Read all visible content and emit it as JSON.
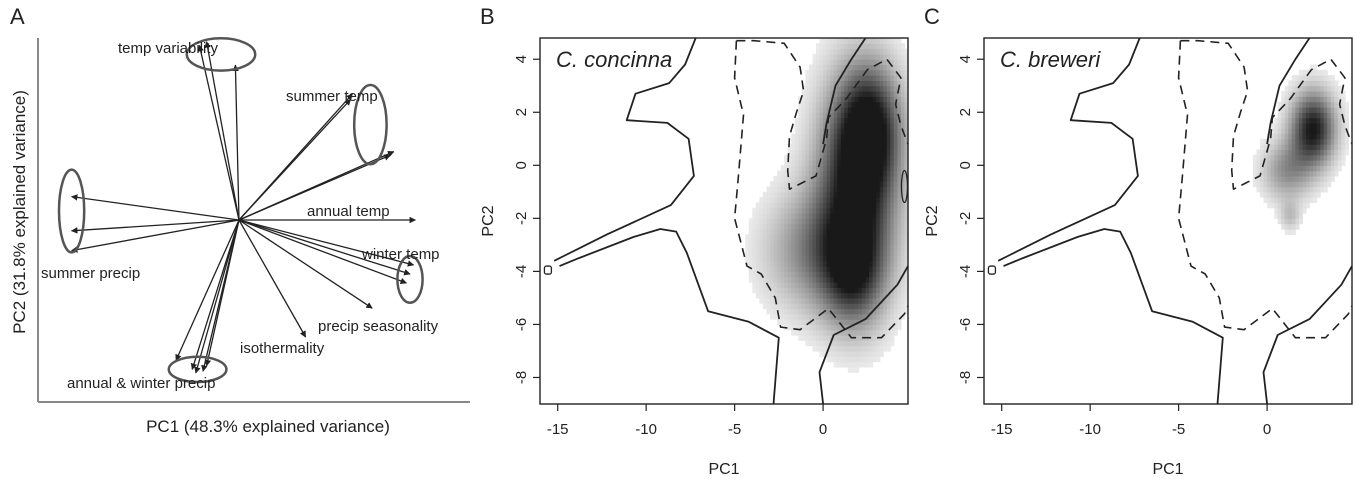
{
  "chart_data": [
    {
      "panel": "A",
      "type": "biplot",
      "xlabel": "PC1 (48.3% explained variance)",
      "ylabel": "PC2  (31.8% explained variance)",
      "xlim": [
        -1,
        1
      ],
      "ylim": [
        -1,
        1
      ],
      "origin": [
        0,
        0
      ],
      "vectors": [
        {
          "x": 0.98,
          "y": 0.0
        },
        {
          "x": 0.84,
          "y": 0.36
        },
        {
          "x": 0.86,
          "y": 0.38
        },
        {
          "x": 0.62,
          "y": 0.67
        },
        {
          "x": 0.63,
          "y": 0.7
        },
        {
          "x": -0.18,
          "y": 0.99
        },
        {
          "x": -0.22,
          "y": 0.97
        },
        {
          "x": -0.02,
          "y": 0.86
        },
        {
          "x": -0.93,
          "y": 0.13
        },
        {
          "x": -0.93,
          "y": -0.06
        },
        {
          "x": -0.93,
          "y": -0.17
        },
        {
          "x": 0.97,
          "y": -0.25
        },
        {
          "x": 0.95,
          "y": -0.3
        },
        {
          "x": 0.93,
          "y": -0.35
        },
        {
          "x": 0.74,
          "y": -0.49
        },
        {
          "x": 0.37,
          "y": -0.65
        },
        {
          "x": -0.35,
          "y": -0.78
        },
        {
          "x": -0.26,
          "y": -0.83
        },
        {
          "x": -0.24,
          "y": -0.85
        },
        {
          "x": -0.2,
          "y": -0.84
        },
        {
          "x": -0.18,
          "y": -0.81
        }
      ],
      "groups": [
        {
          "label": "temp variability",
          "cx": -0.1,
          "cy": 0.92,
          "rx": 0.19,
          "ry": 0.09
        },
        {
          "label": "summer temp",
          "cx": 0.73,
          "cy": 0.53,
          "rx": 0.09,
          "ry": 0.22
        },
        {
          "label": "annual temp"
        },
        {
          "label": "summer precip",
          "cx": -0.93,
          "cy": 0.05,
          "rx": 0.07,
          "ry": 0.23
        },
        {
          "label": "winter temp",
          "cx": 0.95,
          "cy": -0.33,
          "rx": 0.07,
          "ry": 0.13
        },
        {
          "label": "precip seasonality"
        },
        {
          "label": "isothermality"
        },
        {
          "label": "annual & winter precip",
          "cx": -0.23,
          "cy": -0.83,
          "rx": 0.16,
          "ry": 0.07
        }
      ]
    },
    {
      "panel": "B",
      "type": "density-contour",
      "title": "C. concinna",
      "xlabel": "PC1",
      "ylabel": "PC2",
      "xlim": [
        -16,
        4.8
      ],
      "ylim": [
        -9,
        4.8
      ],
      "xticks": [
        -15,
        -10,
        -5,
        0
      ],
      "yticks": [
        -8,
        -6,
        -4,
        -2,
        0,
        2,
        4
      ],
      "density_peaks": [
        {
          "x": 1.8,
          "y": -0.9,
          "sx": 1.6,
          "sy": 2.8,
          "w": 1.0
        },
        {
          "x": 2.6,
          "y": 1.4,
          "sx": 1.2,
          "sy": 1.6,
          "w": 0.7
        },
        {
          "x": -0.8,
          "y": -3.3,
          "sx": 1.9,
          "sy": 1.6,
          "w": 0.45
        },
        {
          "x": 1.6,
          "y": -4.2,
          "sx": 1.2,
          "sy": 1.4,
          "w": 0.55
        }
      ]
    },
    {
      "panel": "C",
      "type": "density-contour",
      "title": "C. breweri",
      "xlabel": "PC1",
      "ylabel": "PC2",
      "xlim": [
        -16,
        4.8
      ],
      "ylim": [
        -9,
        4.8
      ],
      "xticks": [
        -15,
        -10,
        -5,
        0
      ],
      "yticks": [
        -8,
        -6,
        -4,
        -2,
        0,
        2,
        4
      ],
      "density_peaks": [
        {
          "x": 2.5,
          "y": 1.3,
          "sx": 0.9,
          "sy": 1.0,
          "w": 1.0
        },
        {
          "x": 1.0,
          "y": -0.3,
          "sx": 1.0,
          "sy": 0.8,
          "w": 0.45
        },
        {
          "x": 1.2,
          "y": -2.0,
          "sx": 0.4,
          "sy": 0.4,
          "w": 0.25
        }
      ]
    }
  ],
  "panel_labels": [
    "A",
    "B",
    "C"
  ]
}
